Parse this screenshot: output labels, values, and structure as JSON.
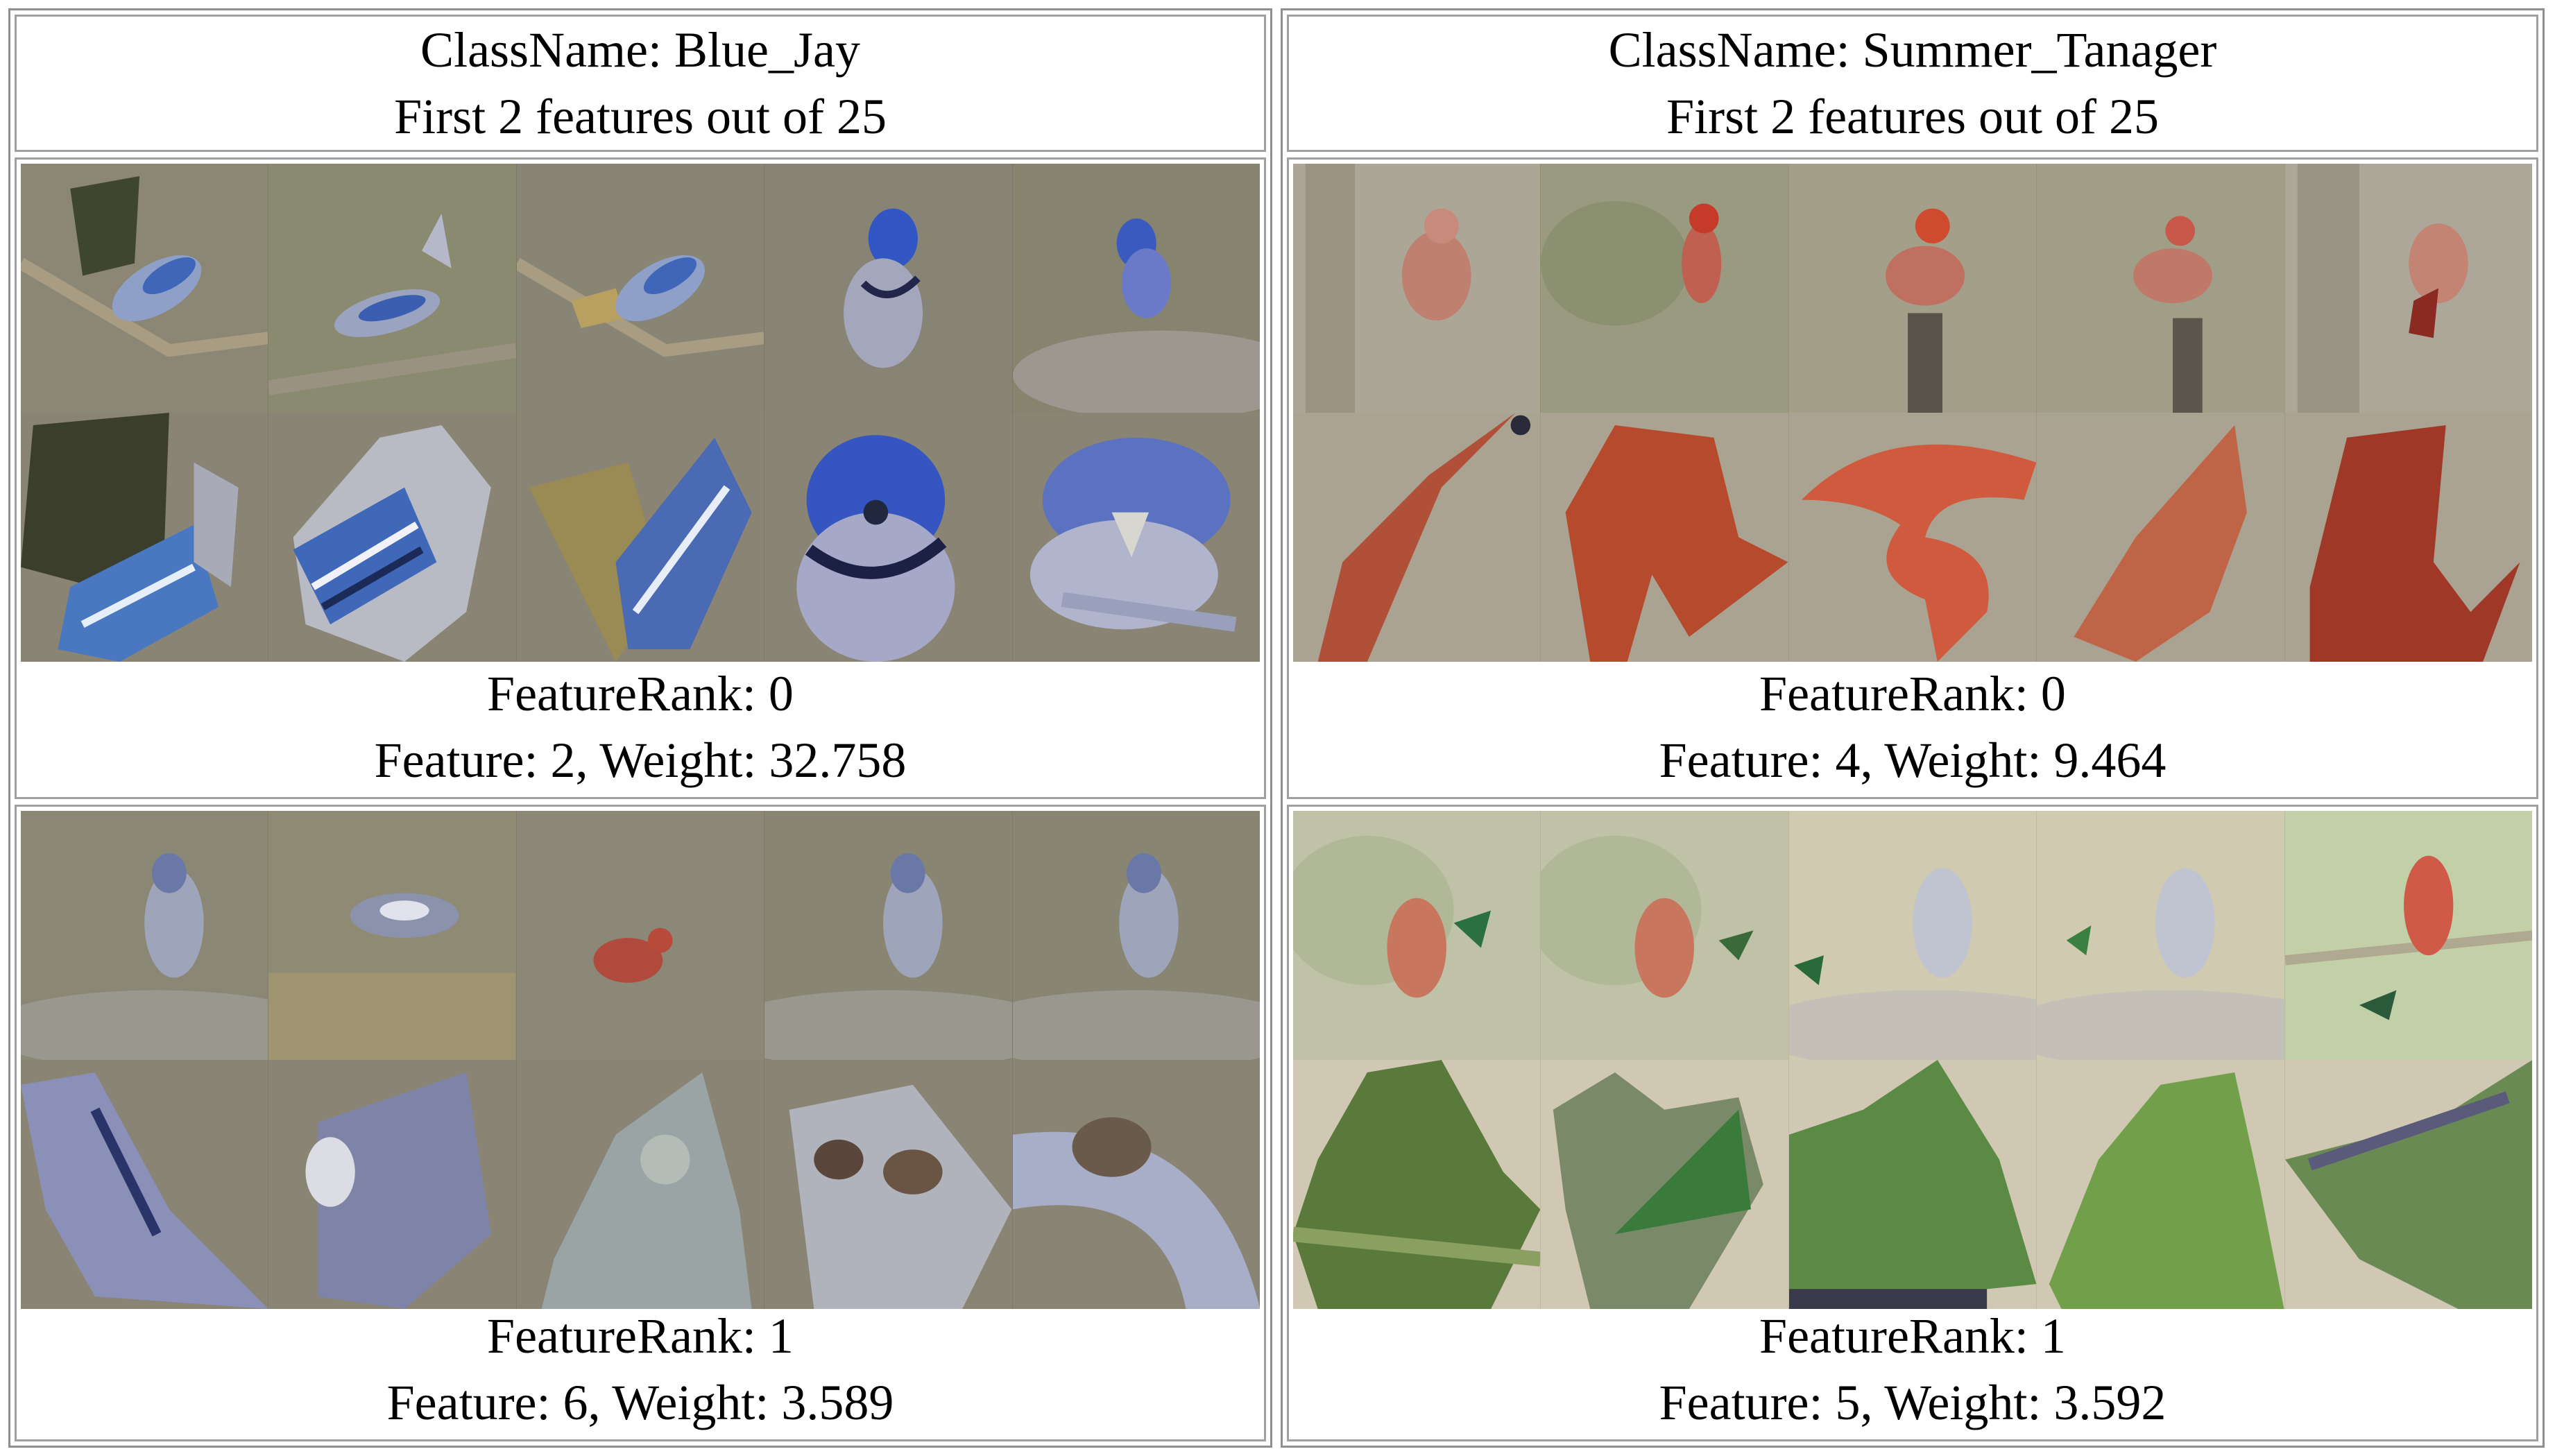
{
  "panels": [
    {
      "class_line": "ClassName: Blue_Jay",
      "subtitle": "First 2 features out of 25",
      "features": [
        {
          "rank_line": "FeatureRank: 0",
          "weight_line": "Feature: 2, Weight: 32.758"
        },
        {
          "rank_line": "FeatureRank: 1",
          "weight_line": "Feature: 6, Weight: 3.589"
        }
      ]
    },
    {
      "class_line": "ClassName: Summer_Tanager",
      "subtitle": "First 2 features out of 25",
      "features": [
        {
          "rank_line": "FeatureRank: 0",
          "weight_line": "Feature: 4, Weight: 9.464"
        },
        {
          "rank_line": "FeatureRank: 1",
          "weight_line": "Feature: 5, Weight: 3.592"
        }
      ]
    }
  ],
  "colors": {
    "border": "#8f8f8f",
    "patch_background": "#8a8474",
    "blue_jay": "#3b5fb8",
    "tanager_red": "#b8402f",
    "leaf_green": "#5f8a3a"
  }
}
